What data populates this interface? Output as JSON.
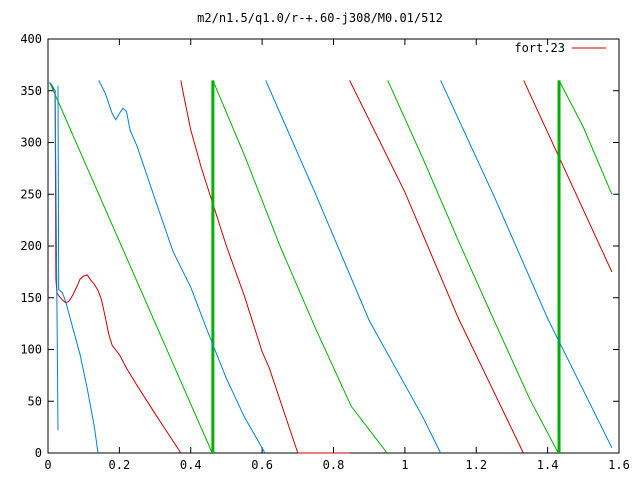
{
  "chart_data": {
    "type": "line",
    "title": "m2/n1.5/q1.0/r-+.60-j308/M0.01/512",
    "xlabel": "",
    "ylabel": "",
    "xlim": [
      0,
      1.6
    ],
    "ylim": [
      0,
      400
    ],
    "x_ticks": [
      "0",
      "0.2",
      "0.4",
      "0.6",
      "0.8",
      "1",
      "1.2",
      "1.4",
      "1.6"
    ],
    "y_ticks": [
      "0",
      "50",
      "100",
      "150",
      "200",
      "250",
      "300",
      "350",
      "400"
    ],
    "legend": {
      "placement": "top-right",
      "label": "fort.23",
      "color": "#cc0000"
    },
    "grid": false,
    "series": [
      {
        "color": "#cc0000",
        "segments": [
          [
            [
              0.005,
              358
            ],
            [
              0.01,
              355
            ],
            [
              0.015,
              352
            ],
            [
              0.02,
              350
            ],
            [
              0.022,
              168
            ]
          ],
          [
            [
              0.022,
              168
            ],
            [
              0.025,
              155
            ],
            [
              0.03,
              152
            ],
            [
              0.04,
              148
            ],
            [
              0.05,
              145
            ],
            [
              0.06,
              147
            ],
            [
              0.07,
              153
            ],
            [
              0.08,
              160
            ],
            [
              0.09,
              168
            ],
            [
              0.1,
              171
            ],
            [
              0.11,
              172
            ],
            [
              0.12,
              167
            ],
            [
              0.13,
              163
            ],
            [
              0.14,
              157
            ],
            [
              0.15,
              148
            ],
            [
              0.16,
              132
            ],
            [
              0.17,
              115
            ],
            [
              0.18,
              104
            ],
            [
              0.2,
              95
            ],
            [
              0.22,
              82
            ],
            [
              0.25,
              65
            ],
            [
              0.3,
              38
            ],
            [
              0.34,
              17
            ],
            [
              0.372,
              0
            ]
          ],
          [
            [
              0.372,
              360
            ],
            [
              0.38,
              346
            ],
            [
              0.4,
              312
            ],
            [
              0.43,
              275
            ],
            [
              0.5,
              200
            ],
            [
              0.55,
              152
            ],
            [
              0.6,
              98
            ],
            [
              0.62,
              82
            ],
            [
              0.7,
              0
            ]
          ],
          [
            [
              0.7,
              0
            ],
            [
              0.844,
              0
            ]
          ],
          [
            [
              0.845,
              360
            ],
            [
              1.0,
              252
            ],
            [
              1.15,
              130
            ],
            [
              1.332,
              0
            ]
          ],
          [
            [
              1.333,
              360
            ],
            [
              1.58,
              175
            ]
          ]
        ]
      },
      {
        "color": "#00b000",
        "segments": [
          [
            [
              0.005,
              358
            ],
            [
              0.46,
              0
            ]
          ],
          [
            [
              0.462,
              360
            ],
            [
              0.55,
              288
            ],
            [
              0.65,
              200
            ],
            [
              0.75,
              120
            ],
            [
              0.85,
              45
            ],
            [
              0.95,
              0
            ]
          ],
          [
            [
              0.952,
              360
            ],
            [
              1.05,
              285
            ],
            [
              1.15,
              205
            ],
            [
              1.25,
              128
            ],
            [
              1.35,
              52
            ],
            [
              1.43,
              0
            ]
          ],
          [
            [
              1.432,
              360
            ],
            [
              1.5,
              315
            ],
            [
              1.58,
              250
            ]
          ]
        ],
        "spikes": [
          [
            0.462,
            0,
            360
          ],
          [
            1.432,
            0,
            360
          ]
        ]
      },
      {
        "color": "#0080d0",
        "segments": [
          [
            [
              0.003,
              358
            ],
            [
              0.01,
              356
            ],
            [
              0.02,
              350
            ],
            [
              0.028,
              22
            ]
          ],
          [
            [
              0.028,
              355
            ],
            [
              0.03,
              158
            ],
            [
              0.04,
              155
            ],
            [
              0.05,
              146
            ],
            [
              0.07,
              120
            ],
            [
              0.09,
              95
            ],
            [
              0.11,
              62
            ],
            [
              0.13,
              25
            ],
            [
              0.14,
              0
            ]
          ],
          [
            [
              0.142,
              360
            ],
            [
              0.16,
              348
            ],
            [
              0.18,
              328
            ],
            [
              0.19,
              322
            ],
            [
              0.2,
              328
            ],
            [
              0.21,
              333
            ],
            [
              0.22,
              330
            ],
            [
              0.23,
              312
            ],
            [
              0.25,
              296
            ],
            [
              0.3,
              245
            ],
            [
              0.35,
              195
            ],
            [
              0.4,
              160
            ],
            [
              0.45,
              115
            ],
            [
              0.5,
              72
            ],
            [
              0.55,
              35
            ],
            [
              0.608,
              0
            ]
          ],
          [
            [
              0.61,
              360
            ],
            [
              0.75,
              250
            ],
            [
              0.9,
              128
            ],
            [
              1.05,
              35
            ],
            [
              1.1,
              0
            ]
          ],
          [
            [
              1.1,
              360
            ],
            [
              1.25,
              248
            ],
            [
              1.4,
              130
            ],
            [
              1.58,
              5
            ]
          ]
        ]
      }
    ]
  }
}
